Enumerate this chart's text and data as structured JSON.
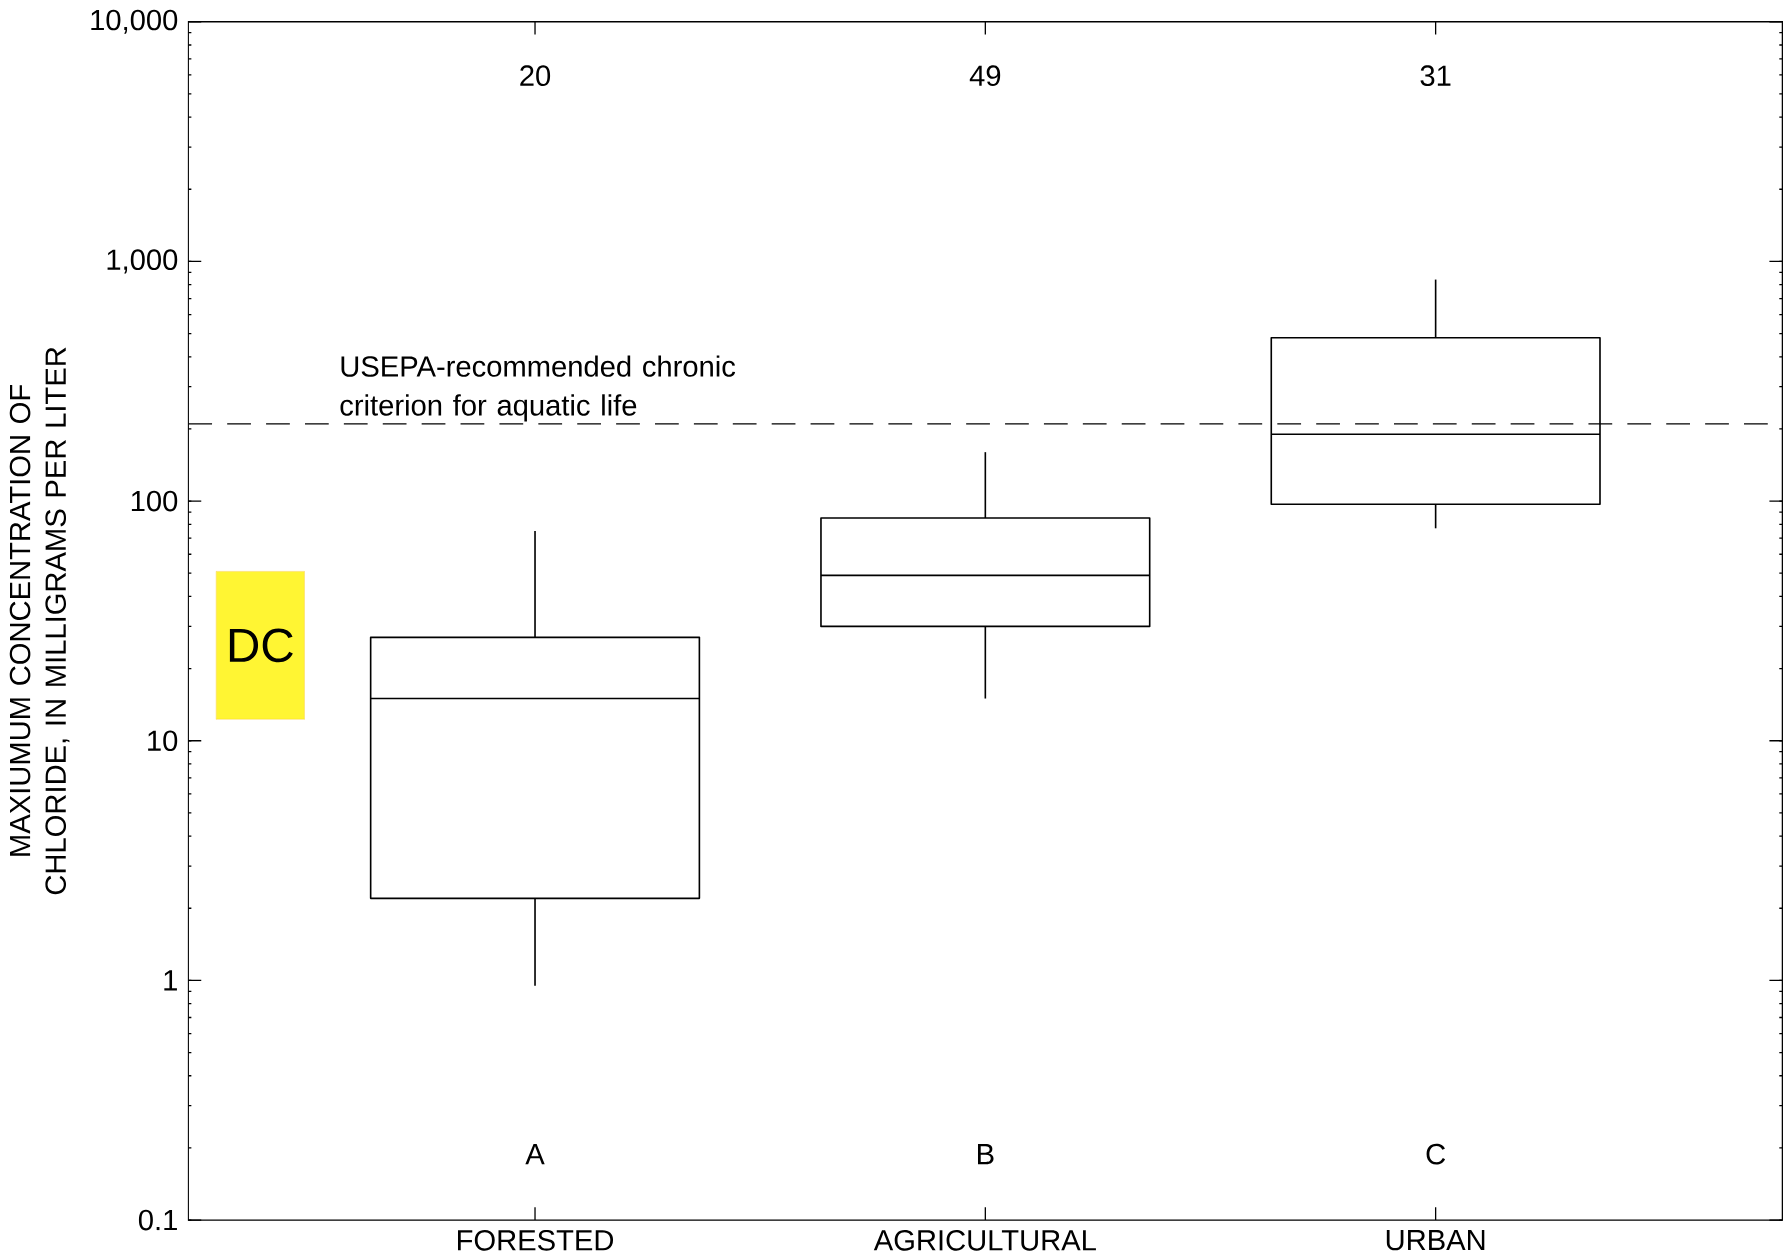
{
  "chart_data": {
    "type": "box",
    "ylabel": "MAXIUMUM CONCENTRATION OF CHLORIDE, IN MILLIGRAMS PER LITER",
    "categories": [
      "FORESTED",
      "AGRICULTURAL",
      "URBAN"
    ],
    "boxes": [
      {
        "low": 0.95,
        "q1": 2.2,
        "median": 15,
        "q3": 27,
        "high": 75
      },
      {
        "low": 15,
        "q1": 30,
        "median": 49,
        "q3": 85,
        "high": 160
      },
      {
        "low": 77,
        "q1": 97,
        "median": 190,
        "q3": 480,
        "high": 840
      }
    ],
    "log": "y",
    "ylim": [
      0.1,
      10000
    ],
    "yticks": [
      0.1,
      1,
      10,
      100,
      {
        "value": 1000,
        "label": "1,000"
      },
      {
        "value": 10000,
        "label": "10,000"
      }
    ],
    "ref_lines": [
      {
        "axis": "y",
        "value": 210,
        "label": "USEPA-recommended chronic criterion for aquatic life",
        "line_style": "dashed"
      }
    ],
    "annotations": [
      "20",
      "49",
      "31",
      "A",
      "B",
      "C",
      "DC"
    ],
    "grid": false
  }
}
